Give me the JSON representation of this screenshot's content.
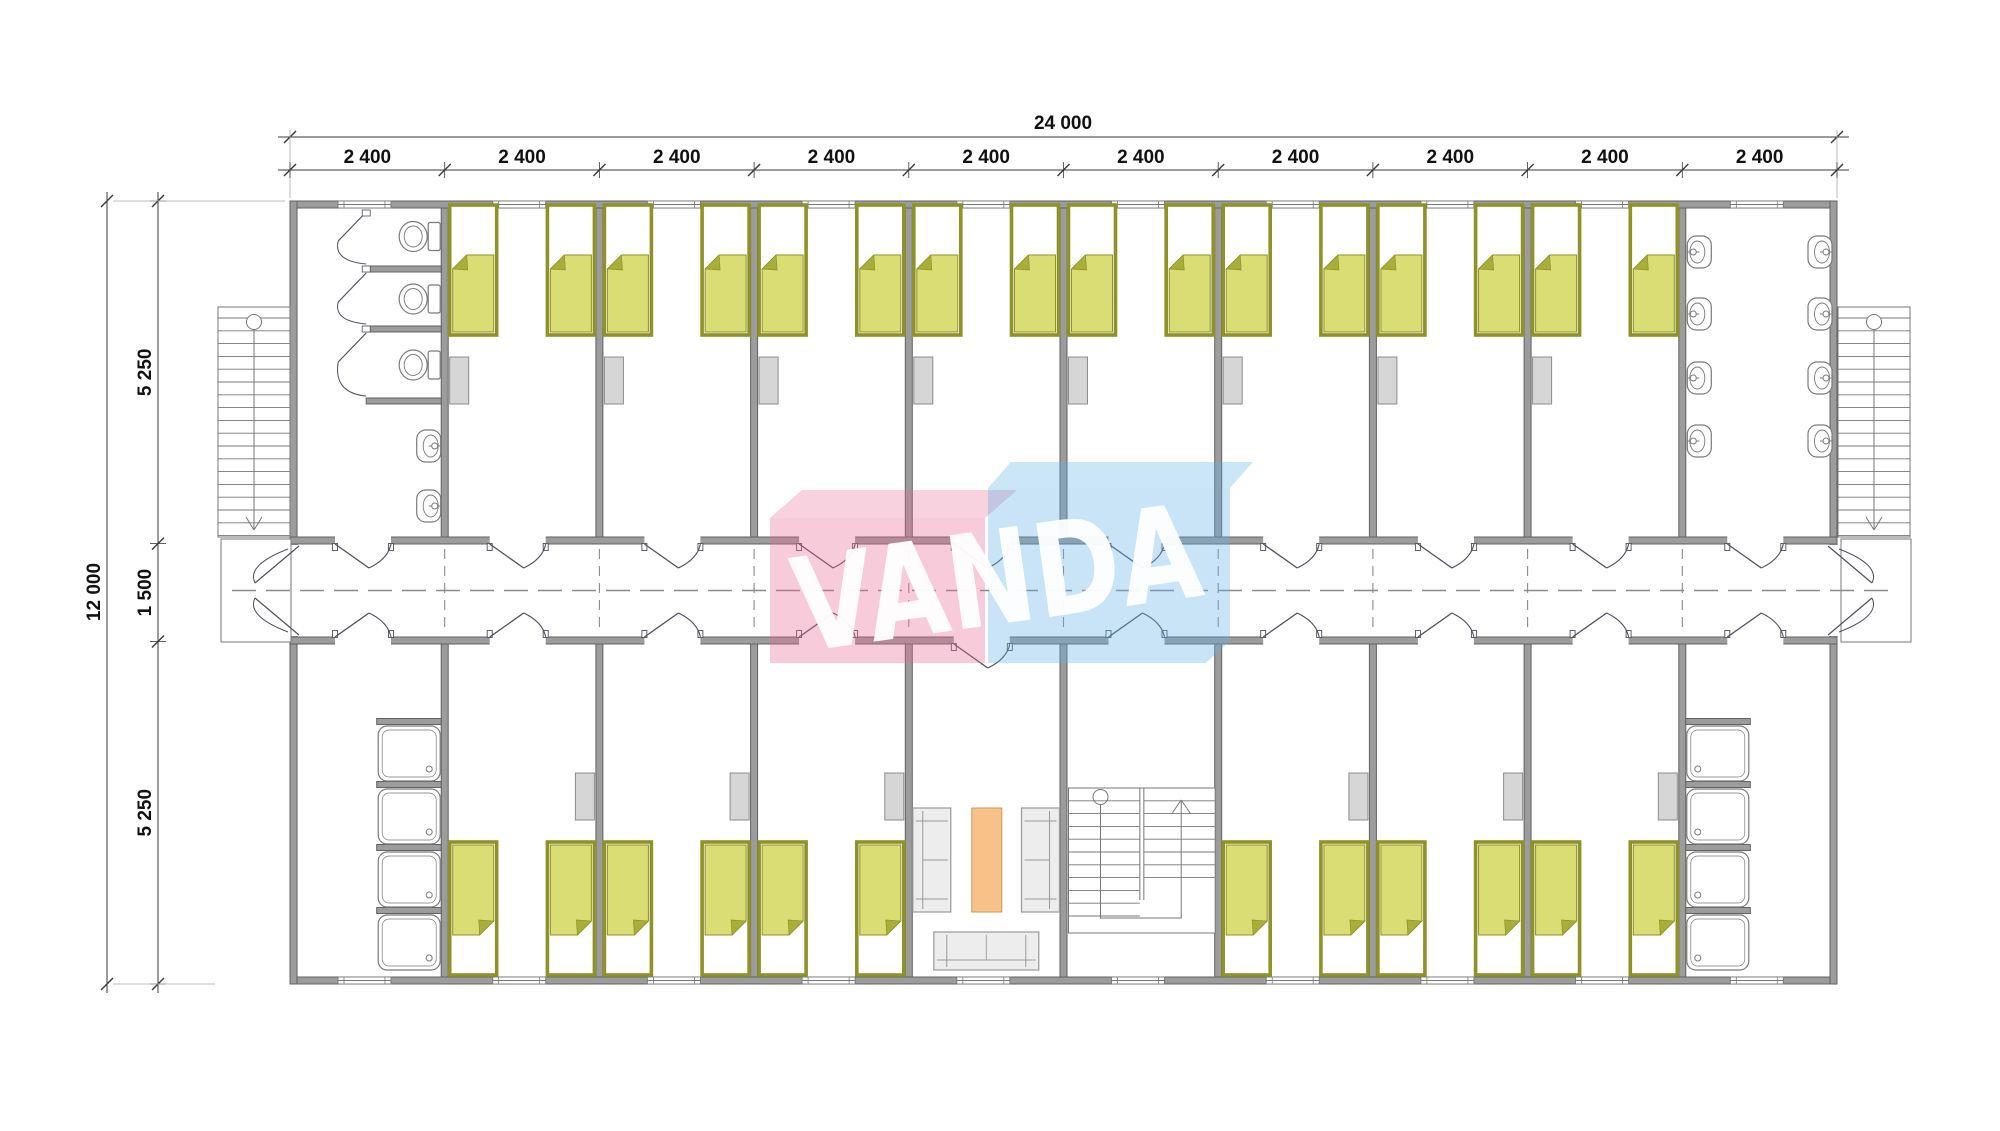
{
  "logo": {
    "text": "VANDA"
  },
  "dimensions": {
    "top_total": "24 000",
    "top_segments": [
      "2 400",
      "2 400",
      "2 400",
      "2 400",
      "2 400",
      "2 400",
      "2 400",
      "2 400",
      "2 400",
      "2 400"
    ],
    "left_total": "12 000",
    "left_segments": [
      "5 250",
      "1 500",
      "5 250"
    ]
  },
  "plan": {
    "module_count": 10,
    "top_rooms": [
      {
        "type": "toilet-room",
        "toilets": 3,
        "basins": 2
      },
      {
        "type": "bedroom",
        "beds": 2,
        "wardrobes": 1
      },
      {
        "type": "bedroom",
        "beds": 2,
        "wardrobes": 1
      },
      {
        "type": "bedroom",
        "beds": 2,
        "wardrobes": 1
      },
      {
        "type": "bedroom",
        "beds": 2,
        "wardrobes": 1
      },
      {
        "type": "bedroom",
        "beds": 2,
        "wardrobes": 1
      },
      {
        "type": "bedroom",
        "beds": 2,
        "wardrobes": 1
      },
      {
        "type": "bedroom",
        "beds": 2,
        "wardrobes": 1
      },
      {
        "type": "bedroom",
        "beds": 2,
        "wardrobes": 1
      },
      {
        "type": "washroom",
        "basins": 8
      }
    ],
    "bottom_rooms": [
      {
        "type": "shower-room",
        "showers": 4
      },
      {
        "type": "bedroom",
        "beds": 2,
        "wardrobes": 1
      },
      {
        "type": "bedroom",
        "beds": 2,
        "wardrobes": 1
      },
      {
        "type": "bedroom",
        "beds": 2,
        "wardrobes": 1
      },
      {
        "type": "lounge",
        "sofas": 3,
        "tables": 1
      },
      {
        "type": "stair-room",
        "stairs": 1
      },
      {
        "type": "bedroom",
        "beds": 2,
        "wardrobes": 1
      },
      {
        "type": "bedroom",
        "beds": 2,
        "wardrobes": 1
      },
      {
        "type": "bedroom",
        "beds": 2,
        "wardrobes": 1
      },
      {
        "type": "shower-room",
        "showers": 4
      }
    ],
    "exterior_stairs": 2
  },
  "colors": {
    "wall_fill": "#9c9c9c",
    "wall_stroke": "#626262",
    "bed_frame": "#8f9226",
    "bed_blanket": "#d9dd74",
    "bed_fold": "#a9ad3a",
    "pillow": "#ffffff",
    "wardrobe_fill": "#d6d6d6",
    "wardrobe_stroke": "#8c8c8c",
    "fixture_stroke": "#7a7a7a",
    "sofa_fill": "#ededed",
    "sofa_stroke": "#9a9a9a",
    "table_fill": "#f6c288",
    "table_stroke": "#cf9a57",
    "thin_line": "#777777",
    "door_line": "#4f4f5e",
    "dim_line": "#3a3a3a",
    "dim_text": "#111111",
    "centerline": "#8a8a8a",
    "logo_pink": "#e86a92",
    "logo_blue": "#62b2e4",
    "logo_text": "#ffffff"
  }
}
